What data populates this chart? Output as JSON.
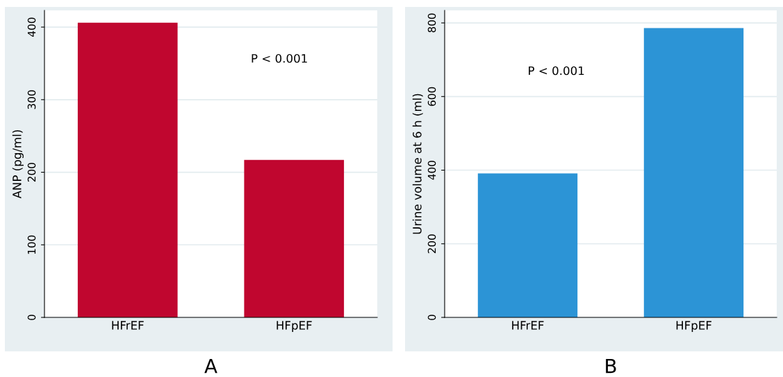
{
  "chart_data": [
    {
      "type": "bar",
      "title": "A",
      "ylabel": "ANP (pg/ml)",
      "categories": [
        "HFrEF",
        "HFpEF"
      ],
      "values": [
        406,
        217
      ],
      "color": "#c0062f",
      "ylim": [
        0,
        423
      ],
      "yticks": [
        0,
        100,
        200,
        300,
        400
      ],
      "grid": "y",
      "legend": false,
      "annotations": [
        "P < 0.001"
      ]
    },
    {
      "type": "bar",
      "title": "B",
      "ylabel": "Urine volume at 6 h (ml)",
      "categories": [
        "HFrEF",
        "HFpEF"
      ],
      "values": [
        391,
        786
      ],
      "color": "#2c94d6",
      "ylim": [
        0,
        834
      ],
      "yticks": [
        0,
        200,
        400,
        600,
        800
      ],
      "grid": "y",
      "legend": false,
      "annotations": [
        "P < 0.001"
      ]
    }
  ]
}
